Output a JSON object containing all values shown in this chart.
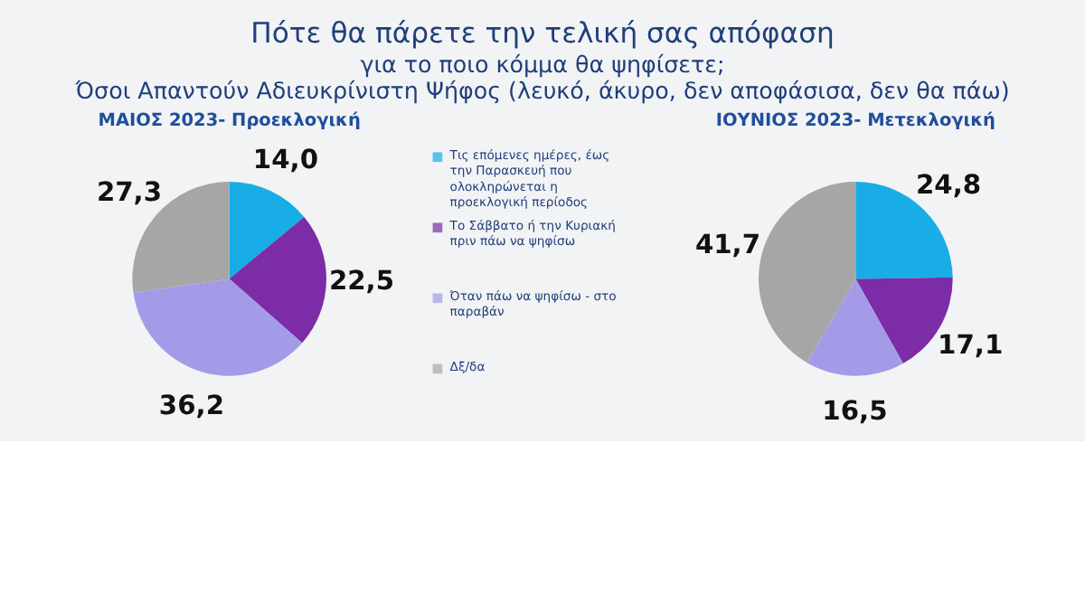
{
  "chart_data": [
    {
      "type": "pie",
      "title": "Πότε θα πάρετε την τελική σας απόφαση",
      "subtitle": "για το ποιο κόμμα θα ψηφίσετε;",
      "annotations": [
        "Όσοι Απαντούν Αδιευκρίνιστη  Ψήφος (λευκό, άκυρο, δεν αποφάσισα, δεν θα πάω)",
        "ΜΑΙΟΣ 2023- Προεκλογική"
      ],
      "categories": [
        "Τις επόμενες ημέρες, έως την Παρασκευή που ολοκληρώνεται η προεκλογική περίοδος",
        "Το Σάββατο ή την Κυριακή πριν πάω να ψηφίσω",
        "Όταν πάω να ψηφίσω - στο παραβάν",
        "Δξ/δα"
      ],
      "values": [
        14.0,
        22.5,
        36.2,
        27.3
      ],
      "value_labels": [
        "14,0",
        "22,5",
        "36,2",
        "27,3"
      ],
      "colors": [
        "#18ade6",
        "#7b2ca6",
        "#a39be8",
        "#a6a6a6"
      ],
      "legend": "right"
    },
    {
      "type": "pie",
      "annotations": [
        "ΙΟΥΝΙΟΣ 2023- Μετεκλογική"
      ],
      "values": [
        24.8,
        17.1,
        16.5,
        41.7
      ],
      "value_labels": [
        "24,8",
        "17,1",
        "16,5",
        "41,7"
      ],
      "colors": [
        "#18ade6",
        "#7b2ca6",
        "#a39be8",
        "#a6a6a6"
      ]
    }
  ]
}
